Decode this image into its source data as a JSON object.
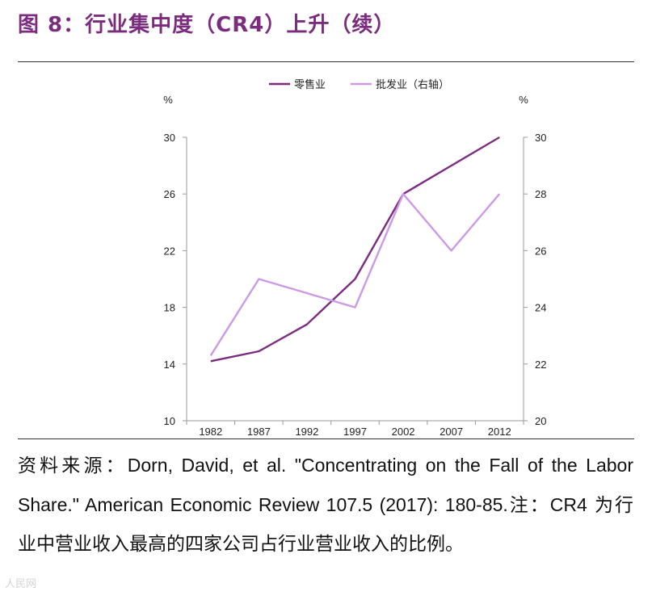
{
  "header": {
    "title": "图 8：行业集中度（CR4）上升（续）"
  },
  "chart_data": {
    "type": "line",
    "categories": [
      "1982",
      "1987",
      "1992",
      "1997",
      "2002",
      "2007",
      "2012"
    ],
    "series": [
      {
        "name": "零售业",
        "axis": "left",
        "color": "#7B2C7F",
        "values": [
          14.2,
          14.9,
          16.8,
          20.0,
          26.0,
          28.0,
          30.0
        ]
      },
      {
        "name": "批发业（右轴）",
        "axis": "right",
        "color": "#CC99E6",
        "values": [
          22.3,
          25.0,
          24.5,
          24.0,
          28.0,
          26.0,
          28.0
        ]
      }
    ],
    "left_axis": {
      "unit": "%",
      "min": 10,
      "max": 30,
      "ticks": [
        10,
        14,
        18,
        22,
        26,
        30
      ]
    },
    "right_axis": {
      "unit": "%",
      "min": 20,
      "max": 30,
      "ticks": [
        20,
        22,
        24,
        26,
        28,
        30
      ]
    },
    "legend_position": "top-center",
    "grid": false
  },
  "source": {
    "label": "资料来源：",
    "citation": "Dorn, David, et al. \"Concentrating on the Fall of the Labor Share.\" American Economic Review 107.5 (2017): 180-85.",
    "note_label": "注：",
    "note_cr4": "CR4",
    "note_text": "为行业中营业收入最高的四家公司占行业营业收入的比例。"
  },
  "watermark": "人民网"
}
